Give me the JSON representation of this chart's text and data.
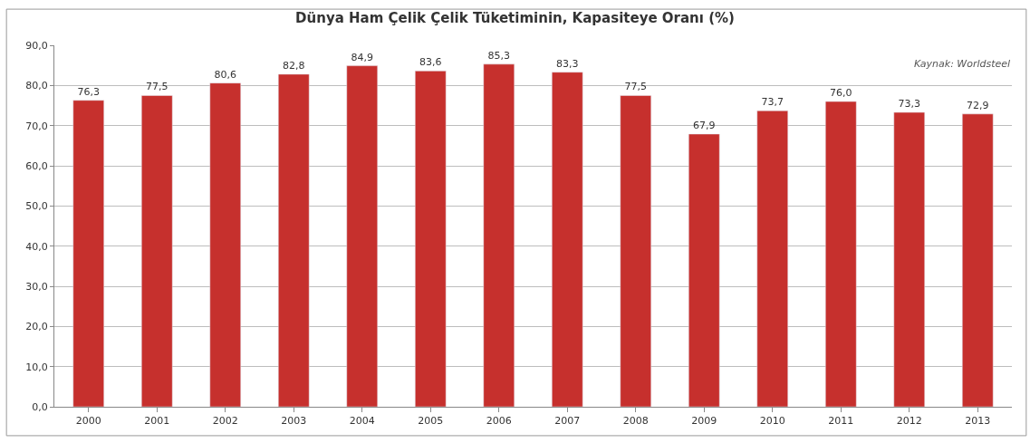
{
  "chart_data": {
    "type": "bar",
    "title": "Dünya Ham Çelik Çelik Tüketiminin, Kapasiteye Oranı (%)",
    "categories": [
      "2000",
      "2001",
      "2002",
      "2003",
      "2004",
      "2005",
      "2006",
      "2007",
      "2008",
      "2009",
      "2010",
      "2011",
      "2012",
      "2013"
    ],
    "values": [
      76.3,
      77.5,
      80.6,
      82.8,
      84.9,
      83.6,
      85.3,
      83.3,
      77.5,
      67.9,
      73.7,
      76.0,
      73.3,
      72.9
    ],
    "value_labels": [
      "76,3",
      "77,5",
      "80,6",
      "82,8",
      "84,9",
      "83,6",
      "85,3",
      "83,3",
      "77,5",
      "67,9",
      "73,7",
      "76,0",
      "73,3",
      "72,9"
    ],
    "color": "#c6302d",
    "ylim": [
      0,
      90
    ],
    "yticks": [
      {
        "value": 0,
        "label": "0,0"
      },
      {
        "value": 10,
        "label": "10,0"
      },
      {
        "value": 20,
        "label": "20,0"
      },
      {
        "value": 30,
        "label": "30,0"
      },
      {
        "value": 40,
        "label": "40,0"
      },
      {
        "value": 50,
        "label": "50,0"
      },
      {
        "value": 60,
        "label": "60,0"
      },
      {
        "value": 70,
        "label": "70,0"
      },
      {
        "value": 80,
        "label": "80,0"
      },
      {
        "value": 90,
        "label": "90,0"
      }
    ],
    "grid": "y",
    "legend": false,
    "annotations": [
      "Kaynak: Worldsteel"
    ]
  }
}
